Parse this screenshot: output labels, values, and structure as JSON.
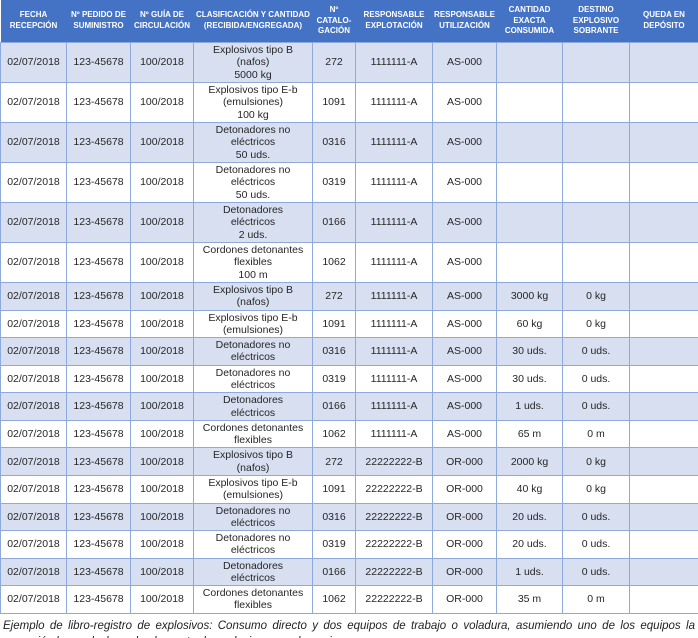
{
  "colors": {
    "header_bg": "#4472C4",
    "header_text": "#FFFFFF",
    "band_bg": "#D7DFF0",
    "border": "#8EA9DB",
    "text": "#262626"
  },
  "table": {
    "headers": [
      "FECHA\nRECEPCIÓN",
      "Nº PEDIDO DE\nSUMINISTRO",
      "Nº GUÍA DE\nCIRCULACIÓN",
      "CLASIFICACIÓN Y CANTIDAD\n(RECIBIDA/ENGREGADA)",
      "Nº\nCATALO-\nGACIÓN",
      "RESPONSABLE\nEXPLOTACIÓN",
      "RESPONSABLE\nUTILIZACIÓN",
      "CANTIDAD\nEXACTA\nCONSUMIDA",
      "DESTINO\nEXPLOSIVO\nSOBRANTE",
      "QUEDA EN\nDEPÓSITO"
    ],
    "rows": [
      [
        "02/07/2018",
        "123-45678",
        "100/2018",
        "Explosivos tipo B\n(nafos)\n5000 kg",
        "272",
        "1111111-A",
        "AS-000",
        "",
        "",
        ""
      ],
      [
        "02/07/2018",
        "123-45678",
        "100/2018",
        "Explosivos tipo E-b\n(emulsiones)\n100 kg",
        "1091",
        "1111111-A",
        "AS-000",
        "",
        "",
        ""
      ],
      [
        "02/07/2018",
        "123-45678",
        "100/2018",
        "Detonadores no\neléctricos\n50 uds.",
        "0316",
        "1111111-A",
        "AS-000",
        "",
        "",
        ""
      ],
      [
        "02/07/2018",
        "123-45678",
        "100/2018",
        "Detonadores no\neléctricos\n50 uds.",
        "0319",
        "1111111-A",
        "AS-000",
        "",
        "",
        ""
      ],
      [
        "02/07/2018",
        "123-45678",
        "100/2018",
        "Detonadores\neléctricos\n2 uds.",
        "0166",
        "1111111-A",
        "AS-000",
        "",
        "",
        ""
      ],
      [
        "02/07/2018",
        "123-45678",
        "100/2018",
        "Cordones detonantes\nflexibles\n100 m",
        "1062",
        "1111111-A",
        "AS-000",
        "",
        "",
        ""
      ],
      [
        "02/07/2018",
        "123-45678",
        "100/2018",
        "Explosivos tipo B\n(nafos)",
        "272",
        "1111111-A",
        "AS-000",
        "3000 kg",
        "0 kg",
        ""
      ],
      [
        "02/07/2018",
        "123-45678",
        "100/2018",
        "Explosivos tipo E-b\n(emulsiones)",
        "1091",
        "1111111-A",
        "AS-000",
        "60 kg",
        "0 kg",
        ""
      ],
      [
        "02/07/2018",
        "123-45678",
        "100/2018",
        "Detonadores no\neléctricos",
        "0316",
        "1111111-A",
        "AS-000",
        "30 uds.",
        "0 uds.",
        ""
      ],
      [
        "02/07/2018",
        "123-45678",
        "100/2018",
        "Detonadores no\neléctricos",
        "0319",
        "1111111-A",
        "AS-000",
        "30 uds.",
        "0 uds.",
        ""
      ],
      [
        "02/07/2018",
        "123-45678",
        "100/2018",
        "Detonadores\neléctricos",
        "0166",
        "1111111-A",
        "AS-000",
        "1 uds.",
        "0 uds.",
        ""
      ],
      [
        "02/07/2018",
        "123-45678",
        "100/2018",
        "Cordones detonantes\nflexibles",
        "1062",
        "1111111-A",
        "AS-000",
        "65 m",
        "0 m",
        ""
      ],
      [
        "02/07/2018",
        "123-45678",
        "100/2018",
        "Explosivos tipo B\n(nafos)",
        "272",
        "22222222-B",
        "OR-000",
        "2000 kg",
        "0 kg",
        ""
      ],
      [
        "02/07/2018",
        "123-45678",
        "100/2018",
        "Explosivos tipo E-b\n(emulsiones)",
        "1091",
        "22222222-B",
        "OR-000",
        "40 kg",
        "0 kg",
        ""
      ],
      [
        "02/07/2018",
        "123-45678",
        "100/2018",
        "Detonadores no\neléctricos",
        "0316",
        "22222222-B",
        "OR-000",
        "20 uds.",
        "0 uds.",
        ""
      ],
      [
        "02/07/2018",
        "123-45678",
        "100/2018",
        "Detonadores no\neléctricos",
        "0319",
        "22222222-B",
        "OR-000",
        "20 uds.",
        "0 uds.",
        ""
      ],
      [
        "02/07/2018",
        "123-45678",
        "100/2018",
        "Detonadores\neléctricos",
        "0166",
        "22222222-B",
        "OR-000",
        "1 uds.",
        "0 uds.",
        ""
      ],
      [
        "02/07/2018",
        "123-45678",
        "100/2018",
        "Cordones detonantes\nflexibles",
        "1062",
        "22222222-B",
        "OR-000",
        "35 m",
        "0 m",
        ""
      ]
    ]
  },
  "caption": "Ejemplo de libro-registro de explosivos: Consumo directo y dos equipos de trabajo o voladura, asumiendo uno de los equipos la recepción luego declarando el reparto de explosivos a cada equipo"
}
